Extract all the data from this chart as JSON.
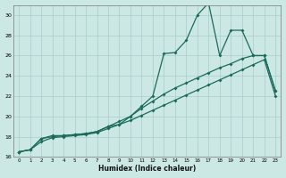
{
  "xlabel": "Humidex (Indice chaleur)",
  "bg_color": "#cce8e5",
  "grid_color": "#a8ccca",
  "line_color": "#1a6b5a",
  "xlim": [
    -0.5,
    23.5
  ],
  "ylim": [
    16,
    31
  ],
  "xticks": [
    0,
    1,
    2,
    3,
    4,
    5,
    6,
    7,
    8,
    9,
    10,
    11,
    12,
    13,
    14,
    15,
    16,
    17,
    18,
    19,
    20,
    21,
    22,
    23
  ],
  "yticks": [
    16,
    18,
    20,
    22,
    24,
    26,
    28,
    30
  ],
  "s1_x": [
    0,
    1,
    2,
    3,
    4,
    5,
    6,
    7,
    8,
    9,
    10,
    11,
    12,
    13,
    14,
    15,
    16,
    17,
    18,
    19,
    20,
    21,
    22,
    23
  ],
  "s1_y": [
    16.5,
    16.7,
    17.8,
    18.1,
    18.1,
    18.2,
    18.3,
    18.5,
    19.0,
    19.2,
    20.0,
    21.0,
    22.0,
    26.2,
    26.3,
    27.5,
    30.0,
    31.2,
    26.0,
    28.5,
    28.5,
    26.0,
    26.0,
    22.5
  ],
  "s2_x": [
    0,
    1,
    2,
    3,
    4,
    5,
    6,
    7,
    8,
    9,
    10,
    11,
    12,
    13,
    14,
    15,
    16,
    17,
    18,
    19,
    20,
    21,
    22,
    23
  ],
  "s2_y": [
    16.5,
    16.7,
    17.8,
    18.0,
    18.1,
    18.2,
    18.3,
    18.5,
    19.0,
    19.5,
    20.0,
    20.8,
    21.5,
    22.2,
    22.8,
    23.3,
    23.8,
    24.3,
    24.8,
    25.2,
    25.7,
    26.0,
    26.0,
    22.5
  ],
  "s3_x": [
    0,
    1,
    2,
    3,
    4,
    5,
    6,
    7,
    8,
    9,
    10,
    11,
    12,
    13,
    14,
    15,
    16,
    17,
    18,
    19,
    20,
    21,
    22,
    23
  ],
  "s3_y": [
    16.5,
    16.7,
    17.5,
    17.9,
    18.0,
    18.1,
    18.2,
    18.4,
    18.8,
    19.2,
    19.6,
    20.1,
    20.6,
    21.1,
    21.6,
    22.1,
    22.6,
    23.1,
    23.6,
    24.1,
    24.6,
    25.1,
    25.6,
    22.0
  ]
}
